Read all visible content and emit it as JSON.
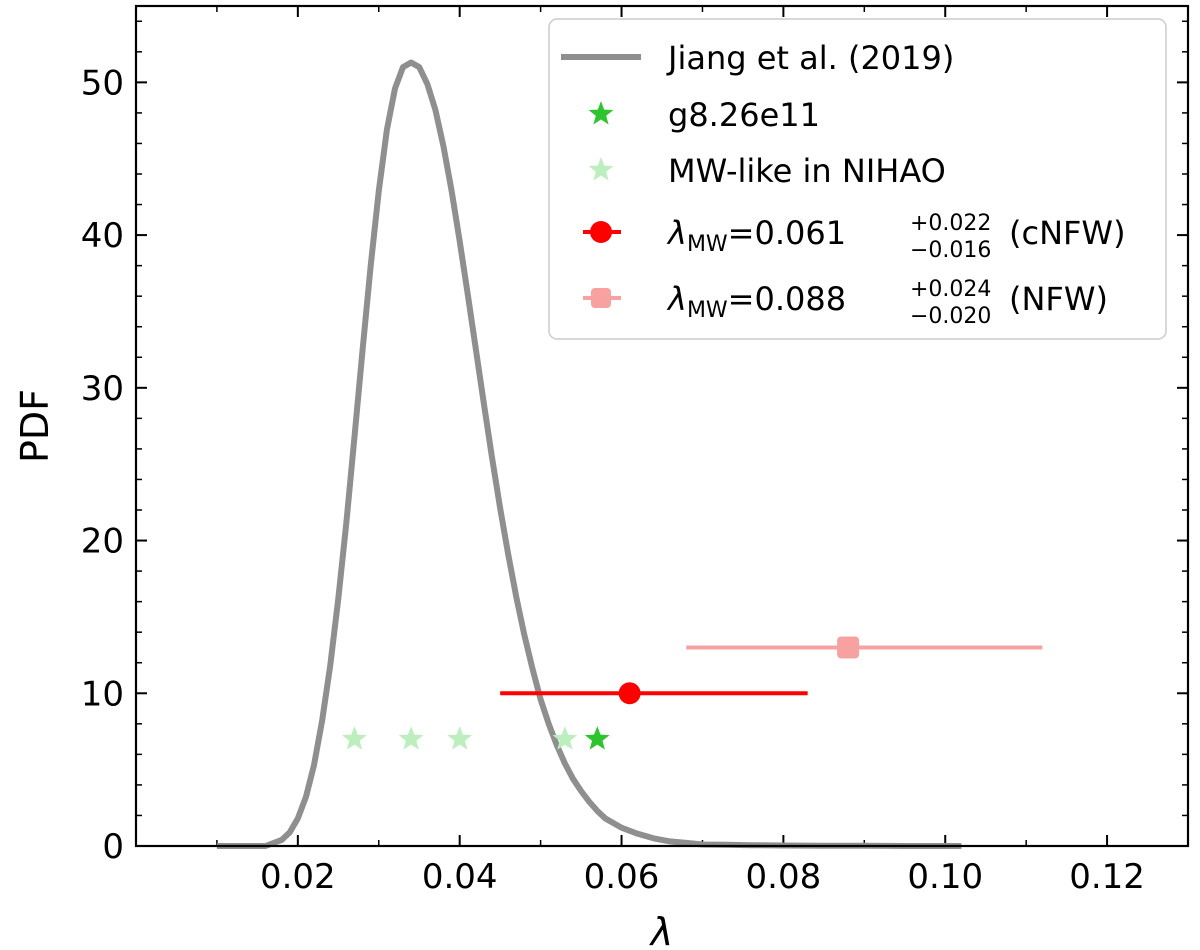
{
  "chart_data": {
    "type": "line",
    "xlabel": "λ",
    "ylabel": "PDF",
    "xlim": [
      0.0,
      0.13
    ],
    "ylim": [
      0,
      55
    ],
    "xticks": [
      0.02,
      0.04,
      0.06,
      0.08,
      0.1,
      0.12
    ],
    "xtick_labels": [
      "0.02",
      "0.04",
      "0.06",
      "0.08",
      "0.10",
      "0.12"
    ],
    "yticks": [
      0,
      10,
      20,
      30,
      40,
      50
    ],
    "ytick_labels": [
      "0",
      "10",
      "20",
      "30",
      "40",
      "50"
    ],
    "grid": false,
    "legend_position": "top-right",
    "colors": {
      "jiang_curve": "#8f8f8f",
      "g826e11": "#2ec42e",
      "nihao": "#bdeebd",
      "cnfw": "#ff0000",
      "nfw": "#f7a1a1"
    },
    "series": [
      {
        "name": "Jiang et al. (2019)",
        "type": "line",
        "x": [
          0.01,
          0.016,
          0.018,
          0.019,
          0.02,
          0.021,
          0.022,
          0.023,
          0.024,
          0.025,
          0.026,
          0.027,
          0.028,
          0.029,
          0.03,
          0.031,
          0.032,
          0.033,
          0.034,
          0.035,
          0.036,
          0.037,
          0.038,
          0.039,
          0.04,
          0.041,
          0.042,
          0.043,
          0.044,
          0.045,
          0.046,
          0.047,
          0.048,
          0.049,
          0.05,
          0.051,
          0.052,
          0.053,
          0.054,
          0.055,
          0.056,
          0.057,
          0.058,
          0.06,
          0.062,
          0.064,
          0.066,
          0.068,
          0.07,
          0.073,
          0.076,
          0.08,
          0.085,
          0.09,
          0.095,
          0.102
        ],
        "y": [
          0.0,
          0.0,
          0.4,
          0.9,
          1.8,
          3.2,
          5.3,
          8.2,
          11.8,
          16.2,
          21.2,
          26.8,
          32.5,
          38.0,
          42.9,
          46.9,
          49.6,
          51.0,
          51.3,
          51.0,
          49.9,
          48.2,
          45.8,
          42.9,
          39.6,
          36.1,
          32.5,
          28.9,
          25.4,
          22.1,
          19.1,
          16.3,
          13.8,
          11.6,
          9.6,
          8.0,
          6.6,
          5.4,
          4.4,
          3.6,
          2.9,
          2.3,
          1.8,
          1.2,
          0.8,
          0.5,
          0.3,
          0.2,
          0.1,
          0.08,
          0.05,
          0.03,
          0.02,
          0.01,
          0.0,
          0.0
        ]
      },
      {
        "name": "g8.26e11",
        "type": "scatter",
        "marker": "star",
        "points": [
          {
            "x": 0.057,
            "y": 7
          }
        ]
      },
      {
        "name": "MW-like in NIHAO",
        "type": "scatter",
        "marker": "star",
        "points": [
          {
            "x": 0.027,
            "y": 7
          },
          {
            "x": 0.034,
            "y": 7
          },
          {
            "x": 0.04,
            "y": 7
          },
          {
            "x": 0.053,
            "y": 7
          }
        ]
      },
      {
        "name": "λMW=0.061 (cNFW)",
        "type": "errorbar",
        "marker": "circle",
        "x": 0.061,
        "y": 10,
        "xerr_minus": 0.016,
        "xerr_plus": 0.022
      },
      {
        "name": "λMW=0.088 (NFW)",
        "type": "errorbar",
        "marker": "square",
        "x": 0.088,
        "y": 13,
        "xerr_minus": 0.02,
        "xerr_plus": 0.024
      }
    ],
    "legend": {
      "jiang": "Jiang et al. (2019)",
      "g826": "g8.26e11",
      "nihao": "MW-like in NIHAO",
      "cnfw_main": "λ",
      "cnfw_sub": "MW",
      "cnfw_val": "=0.061",
      "cnfw_sup": "+0.022",
      "cnfw_inf": "−0.016",
      "cnfw_tail": "(cNFW)",
      "nfw_main": "λ",
      "nfw_sub": "MW",
      "nfw_val": "=0.088",
      "nfw_sup": "+0.024",
      "nfw_inf": "−0.020",
      "nfw_tail": "(NFW)"
    }
  }
}
